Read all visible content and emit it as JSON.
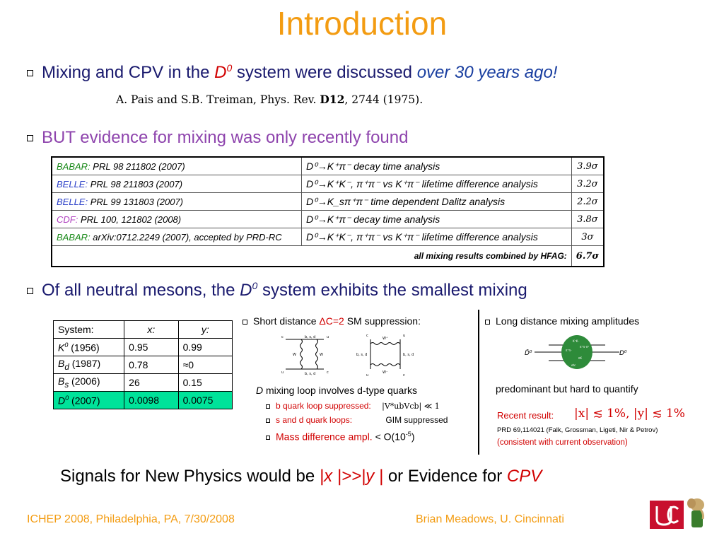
{
  "slide": {
    "title": "Introduction",
    "b1": {
      "pre": "Mixing and CPV in the ",
      "d0": "D",
      "d0sup": "0",
      "mid": " system were discussed ",
      "emph": "over 30 years ago!"
    },
    "ref": {
      "pre": "A. Pais and S.B. Treiman, Phys. Rev. ",
      "vol": "D12",
      "post": ", 2744 (1975)."
    },
    "b2": "BUT evidence for mixing was only recently found",
    "results": [
      {
        "exp": "BABAR:",
        "ref": " PRL 98 211802 (2007)",
        "analysis": "D⁰→K⁺π⁻ decay time analysis",
        "sig": "3.9σ",
        "color": "#1a8a1a"
      },
      {
        "exp": "BELLE:",
        "ref": "  PRL 98 211803 (2007)",
        "analysis": "D⁰→K⁺K⁻, π⁺π⁻ vs K⁺π⁻ lifetime difference analysis",
        "sig": "3.2σ",
        "color": "#2a3fc8"
      },
      {
        "exp": "BELLE:",
        "ref": "  PRL 99 131803 (2007)",
        "analysis": "D⁰→K_sπ⁺π⁻ time dependent Dalitz analysis",
        "sig": "2.2σ",
        "color": "#2a3fc8"
      },
      {
        "exp": "CDF:",
        "ref": " PRL 100, 121802 (2008)",
        "analysis": "D⁰→K⁺π⁻ decay time analysis",
        "sig": "3.8σ",
        "color": "#b040c0"
      },
      {
        "exp": "BABAR:",
        "ref": " arXiv:0712.2249 (2007), accepted by PRD-RC",
        "analysis": "D⁰→K⁺K⁻, π⁺π⁻ vs K⁺π⁻ lifetime difference analysis",
        "sig": "3σ",
        "color": "#1a8a1a"
      }
    ],
    "combined": {
      "label": "all mixing results combined by HFAG:",
      "sig": "6.7σ"
    },
    "b3": {
      "pre": "Of all neutral mesons, the ",
      "d0": "D",
      "d0sup": "0",
      "post": " system exhibits the smallest mixing"
    },
    "mixing_table": {
      "headers": [
        "System:",
        "x:",
        "y:"
      ],
      "rows": [
        {
          "sys": "K",
          "sub": "",
          "sup": "0",
          "year": " (1956)",
          "x": "0.95",
          "y": "0.99"
        },
        {
          "sys": "B",
          "sub": "d",
          "sup": "",
          "year": " (1987)",
          "x": "0.78",
          "y": "≈0"
        },
        {
          "sys": "B",
          "sub": "s",
          "sup": "",
          "year": " (2006)",
          "x": "26",
          "y": "0.15"
        },
        {
          "sys": "D",
          "sub": "",
          "sup": "0",
          "year": " (2007)",
          "x": "0.0098",
          "y": "0.0075"
        }
      ]
    },
    "short": {
      "label_pre": "Short distance ",
      "label_dc": "ΔC=2",
      "label_post": " SM suppression:",
      "dloop_d": "D",
      "dloop_rest": " mixing loop involves d-type quarks",
      "bq": "b quark loop suppressed:",
      "bq_formula": "|V*ubVcb| ≪ 1",
      "sd": "s and d quark loops:",
      "gim": "GIM suppressed",
      "mass_label": "Mass difference ampl.",
      "mass_val_pre": " < O(10",
      "mass_exp": "-5",
      "mass_val_post": ")"
    },
    "long": {
      "label": "Long distance mixing amplitudes",
      "note": "predominant but hard to quantify",
      "recent": "Recent result:",
      "formula": "|x| ≲ 1%,   |y| ≲ 1%",
      "prd": "PRD 69,114021 (Falk, Grossman, Ligeti, Nir & Petrov)",
      "consistent": "(consistent with current observation)"
    },
    "signals": {
      "pre": "Signals for New Physics would be ",
      "cond": "|x |>>|y |",
      "mid": " or Evidence for ",
      "cpv": "CPV"
    },
    "footer": {
      "left": "ICHEP 2008, Philadelphia, PA, 7/30/2008",
      "right": "Brian Meadows, U. Cincinnati"
    },
    "diagram_labels": {
      "bsd": "b, s, d",
      "W": "W",
      "Wp": "W⁺",
      "Wm": "W⁻",
      "c": "c",
      "u": "u",
      "D0bar": "D̄⁰",
      "D0": "D⁰",
      "kk": "K⁺K⁻",
      "pipi": "π⁺π⁻",
      "kpi": "K⁺K⁻",
      "pipipi": "π⁺π⁻π⁰",
      "pk": "πK",
      "etc": "etc"
    },
    "colors": {
      "title": "#f39c12",
      "text_blue": "#1a1a6e",
      "accent_red": "#d10000",
      "highlight": "#00e39a"
    }
  }
}
